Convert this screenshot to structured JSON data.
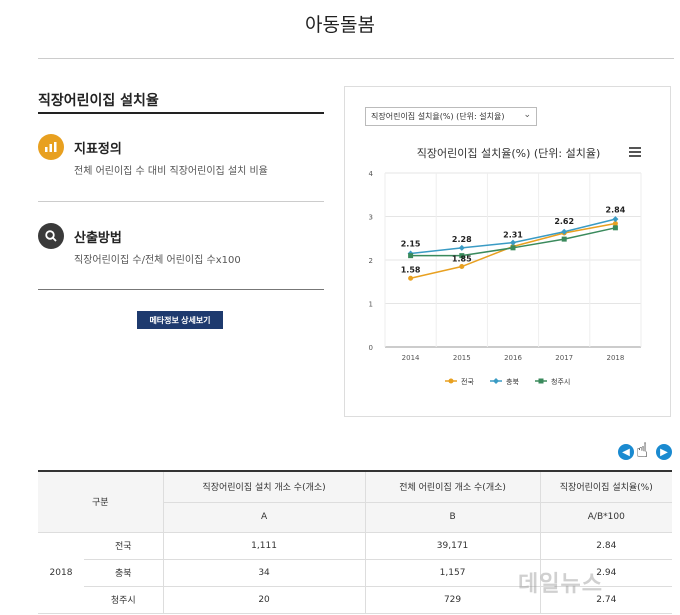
{
  "page": {
    "title": "아동돌봄"
  },
  "section": {
    "heading": "직장어린이집 설치율"
  },
  "definition": {
    "label": "지표정의",
    "desc": "전체 어린이집 수 대비 직장어린이집 설치 비율"
  },
  "method": {
    "label": "산출방법",
    "desc": "직장어린이집 수/전체 어린이집 수x100"
  },
  "meta_button": "메타정보 상세보기",
  "chart": {
    "selector": "직장어린이집 설치율(%) (단위: 설치율)",
    "title": "직장어린이집 설치율(%) (단위: 설치율)"
  },
  "chart_data": {
    "type": "line",
    "title": "직장어린이집 설치율(%) (단위: 설치율)",
    "categories": [
      "2014",
      "2015",
      "2016",
      "2017",
      "2018"
    ],
    "ylim": [
      0,
      4
    ],
    "yticks": [
      "0",
      "1",
      "2",
      "3",
      "4"
    ],
    "grid": true,
    "legend": "bottom",
    "series": [
      {
        "name": "전국",
        "color": "#e8a020",
        "values": [
          1.58,
          1.85,
          2.31,
          2.62,
          2.84
        ]
      },
      {
        "name": "충북",
        "color": "#3a9bc4",
        "values": [
          2.15,
          2.28,
          2.4,
          2.65,
          2.94
        ]
      },
      {
        "name": "청주시",
        "color": "#3a8a5c",
        "values": [
          2.1,
          2.1,
          2.28,
          2.48,
          2.74
        ]
      }
    ],
    "data_labels": [
      "1.58",
      "1.85",
      "2.31",
      "2.62",
      "2.84",
      "2.15",
      "2.28"
    ]
  },
  "table": {
    "headers": {
      "group": "구분",
      "col1": "직장어린이집 설치 개소 수(개소)",
      "col2": "전체 어린이집 개소 수(개소)",
      "col3": "직장어린이집 설치율(%)",
      "sub1": "A",
      "sub2": "B",
      "sub3": "A/B*100"
    },
    "year": "2018",
    "rows": [
      {
        "region": "전국",
        "a": "1,111",
        "b": "39,171",
        "rate": "2.84"
      },
      {
        "region": "충북",
        "a": "34",
        "b": "1,157",
        "rate": "2.94"
      },
      {
        "region": "청주시",
        "a": "20",
        "b": "729",
        "rate": "2.74"
      }
    ]
  },
  "watermark": "데일뉴스"
}
